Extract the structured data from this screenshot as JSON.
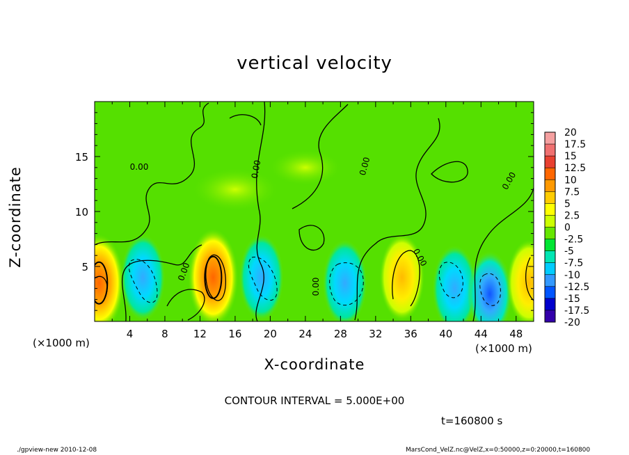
{
  "chart_data": {
    "type": "heatmap",
    "title": "vertical velocity",
    "xlabel": "X-coordinate",
    "ylabel": "Z-coordinate",
    "x_unit": "(×1000 m)",
    "x_unit_right": "(×1000 m)",
    "xlim": [
      0,
      50
    ],
    "ylim": [
      0,
      20
    ],
    "x_ticks": [
      "4",
      "8",
      "12",
      "16",
      "20",
      "24",
      "28",
      "32",
      "36",
      "40",
      "44",
      "48"
    ],
    "y_ticks": [
      "5",
      "10",
      "15"
    ],
    "contour_labels": [
      "0.00",
      "0.00",
      "0.00",
      "0.00",
      "0.00",
      "0.00",
      "0.00"
    ],
    "colorbar": {
      "labels": [
        "20",
        "17.5",
        "15",
        "12.5",
        "10",
        "7.5",
        "5",
        "2.5",
        "0",
        "-2.5",
        "-5",
        "-7.5",
        "-10",
        "-12.5",
        "-15",
        "-17.5",
        "-20"
      ],
      "colors": [
        "#f5a0a0",
        "#f07070",
        "#e84030",
        "#ff6600",
        "#ff9900",
        "#ffcc00",
        "#ffff00",
        "#ccff00",
        "#66e600",
        "#00e633",
        "#00e6b3",
        "#00ccff",
        "#3399ff",
        "#0055ff",
        "#0000cc",
        "#3300aa",
        "#6600aa"
      ]
    },
    "features": [
      {
        "x": 0.5,
        "z": 3.5,
        "value": 12.5
      },
      {
        "x": 5.5,
        "z": 4.0,
        "value": -7.5
      },
      {
        "x": 13.5,
        "z": 4.0,
        "value": 12.5
      },
      {
        "x": 19.0,
        "z": 4.0,
        "value": -7.5
      },
      {
        "x": 28.5,
        "z": 3.5,
        "value": -5
      },
      {
        "x": 35.0,
        "z": 4.0,
        "value": 7.5
      },
      {
        "x": 41.0,
        "z": 3.0,
        "value": -7.5
      },
      {
        "x": 45.0,
        "z": 2.5,
        "value": -10
      },
      {
        "x": 49.5,
        "z": 3.5,
        "value": 7.5
      }
    ]
  },
  "contour_interval": "CONTOUR INTERVAL = 5.000E+00",
  "time_label": "t=160800 s",
  "footer_left": "./gpview-new   2010-12-08",
  "footer_right": "MarsCond_VelZ.nc@VelZ,x=0:50000,z=0:20000,t=160800"
}
